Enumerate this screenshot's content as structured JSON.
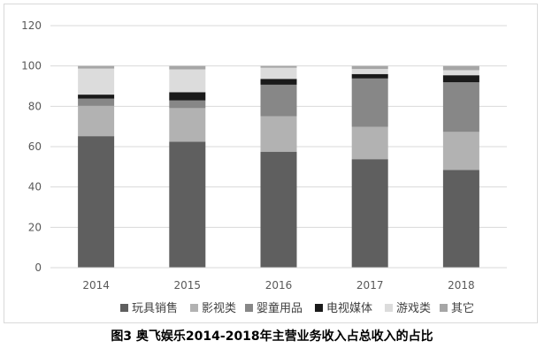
{
  "caption": "图3 奥飞娱乐2014-2018年主营业务收入占总收入的占比",
  "chart_data": {
    "type": "bar",
    "stacked": true,
    "categories": [
      "2014",
      "2015",
      "2016",
      "2017",
      "2018"
    ],
    "yticks": [
      "0",
      "20",
      "40",
      "60",
      "80",
      "100",
      "120"
    ],
    "ylim": [
      0,
      120
    ],
    "grid": true,
    "legend_position": "bottom",
    "series": [
      {
        "name": "玩具销售",
        "color": "#5f5f5f",
        "values": [
          65.2,
          62.4,
          57.5,
          53.8,
          48.4
        ]
      },
      {
        "name": "影视类",
        "color": "#b2b2b2",
        "values": [
          15.0,
          16.7,
          17.6,
          16.0,
          18.9
        ]
      },
      {
        "name": "婴童用品",
        "color": "#878787",
        "values": [
          3.6,
          3.8,
          15.6,
          24.0,
          24.6
        ]
      },
      {
        "name": "电视媒体",
        "color": "#1a1a1a",
        "values": [
          2.0,
          4.1,
          2.9,
          2.2,
          3.5
        ]
      },
      {
        "name": "游戏类",
        "color": "#dcdcdc",
        "values": [
          12.9,
          11.3,
          5.5,
          2.5,
          2.5
        ]
      },
      {
        "name": "其它",
        "color": "#a6a6a6",
        "values": [
          1.3,
          1.7,
          0.9,
          1.5,
          2.1
        ]
      }
    ]
  }
}
